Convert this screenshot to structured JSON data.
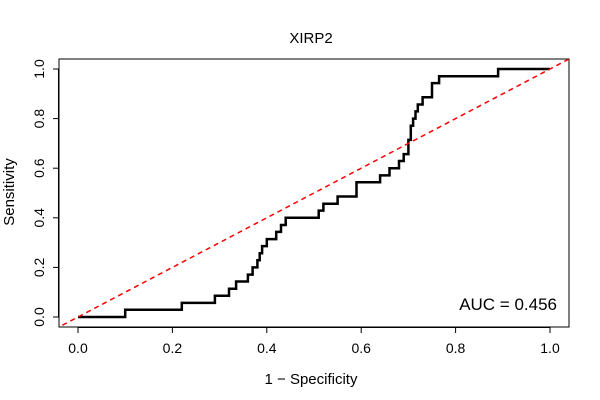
{
  "chart_data": {
    "type": "line",
    "title": "XIRP2",
    "xlabel": "1 − Specificity",
    "ylabel": "Sensitivity",
    "xlim": [
      0,
      1
    ],
    "ylim": [
      0,
      1
    ],
    "xticks": [
      0.0,
      0.2,
      0.4,
      0.6,
      0.8,
      1.0
    ],
    "yticks": [
      0.0,
      0.2,
      0.4,
      0.6,
      0.8,
      1.0
    ],
    "xtick_labels": [
      "0.0",
      "0.2",
      "0.4",
      "0.6",
      "0.8",
      "1.0"
    ],
    "ytick_labels": [
      "0.0",
      "0.2",
      "0.4",
      "0.6",
      "0.8",
      "1.0"
    ],
    "annotation": "AUC = 0.456",
    "colors": {
      "roc": "#000000",
      "reference": "#ff0000",
      "frame": "#000000"
    },
    "series": [
      {
        "name": "ROC curve",
        "style": "solid",
        "x": [
          0.0,
          0.0,
          0.1,
          0.1,
          0.16,
          0.22,
          0.22,
          0.29,
          0.29,
          0.32,
          0.32,
          0.335,
          0.335,
          0.36,
          0.36,
          0.37,
          0.37,
          0.38,
          0.38,
          0.385,
          0.385,
          0.39,
          0.39,
          0.4,
          0.4,
          0.42,
          0.42,
          0.43,
          0.43,
          0.44,
          0.44,
          0.45,
          0.45,
          0.51,
          0.51,
          0.52,
          0.52,
          0.55,
          0.55,
          0.59,
          0.59,
          0.64,
          0.64,
          0.66,
          0.66,
          0.68,
          0.68,
          0.69,
          0.69,
          0.7,
          0.7,
          0.705,
          0.705,
          0.71,
          0.71,
          0.715,
          0.715,
          0.72,
          0.72,
          0.73,
          0.73,
          0.75,
          0.75,
          0.765,
          0.765,
          0.89,
          0.89,
          1.0
        ],
        "y": [
          0.0,
          0.0,
          0.0,
          0.029,
          0.029,
          0.029,
          0.057,
          0.057,
          0.086,
          0.086,
          0.114,
          0.114,
          0.143,
          0.143,
          0.171,
          0.171,
          0.2,
          0.2,
          0.229,
          0.229,
          0.257,
          0.257,
          0.286,
          0.286,
          0.314,
          0.314,
          0.343,
          0.343,
          0.371,
          0.371,
          0.4,
          0.4,
          0.4,
          0.4,
          0.429,
          0.429,
          0.457,
          0.457,
          0.486,
          0.486,
          0.543,
          0.543,
          0.571,
          0.571,
          0.6,
          0.6,
          0.629,
          0.629,
          0.657,
          0.657,
          0.714,
          0.714,
          0.771,
          0.771,
          0.8,
          0.8,
          0.829,
          0.829,
          0.857,
          0.857,
          0.886,
          0.886,
          0.943,
          0.943,
          0.971,
          0.971,
          1.0,
          1.0
        ]
      },
      {
        "name": "Reference line",
        "style": "dashed",
        "x": [
          0,
          1
        ],
        "y": [
          0,
          1
        ]
      }
    ]
  }
}
